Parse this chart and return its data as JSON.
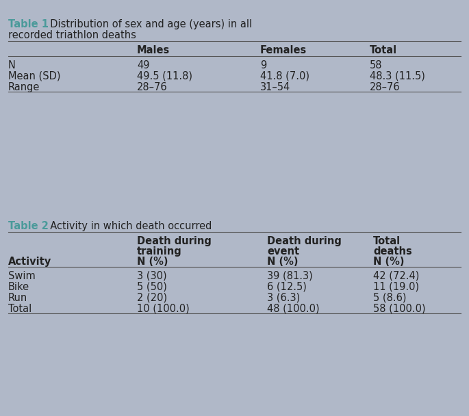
{
  "bg_color": "#b0b8c8",
  "table1": {
    "title_bold": "Table 1",
    "title_rest": "  Distribution of sex and age (years) in all\nrecorded triathlon deaths",
    "headers": [
      "",
      "Males",
      "Females",
      "Total"
    ],
    "rows": [
      [
        "N",
        "49",
        "9",
        "58"
      ],
      [
        "Mean (SD)",
        "49.5 (11.8)",
        "41.8 (7.0)",
        "48.3 (11.5)"
      ],
      [
        "Range",
        "28–76",
        "31–54",
        "28–76"
      ]
    ]
  },
  "table2": {
    "title_bold": "Table 2",
    "title_rest": "  Activity in which death occurred",
    "col0_header": "Activity",
    "headers_line1": [
      "",
      "Death during",
      "Death during",
      "Total"
    ],
    "headers_line2": [
      "",
      "training",
      "event",
      "deaths"
    ],
    "headers_line3": [
      "Activity",
      "N (%)",
      "N (%)",
      "N (%)"
    ],
    "rows": [
      [
        "Swim",
        "3 (30)",
        "39 (81.3)",
        "42 (72.4)"
      ],
      [
        "Bike",
        "5 (50)",
        "6 (12.5)",
        "11 (19.0)"
      ],
      [
        "Run",
        "2 (20)",
        "3 (6.3)",
        "5 (8.6)"
      ],
      [
        "Total",
        "10 (100.0)",
        "48 (100.0)",
        "58 (100.0)"
      ]
    ]
  },
  "teal_color": "#4a9a9a",
  "line_color": "#555555",
  "text_color": "#222222",
  "font_size": 10.5
}
